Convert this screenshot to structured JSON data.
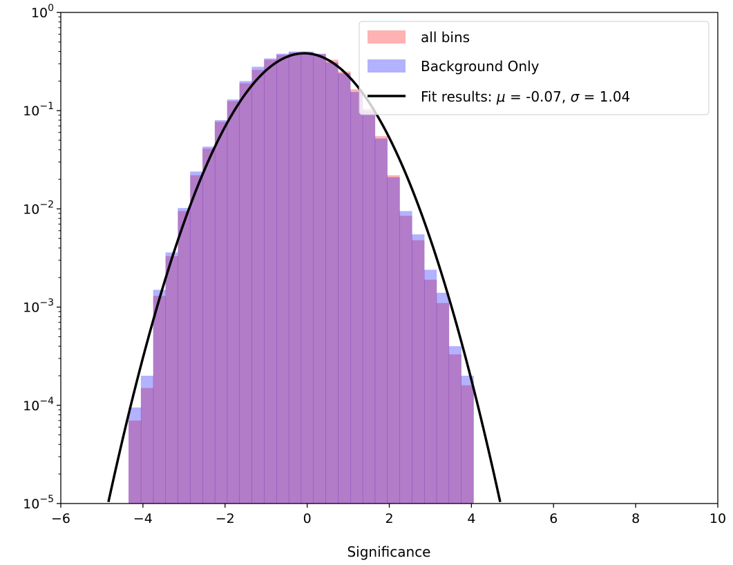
{
  "chart_data": {
    "type": "bar",
    "title": "",
    "xlabel": "Significance",
    "ylabel": "",
    "xlim": [
      -6,
      10
    ],
    "ylim": [
      1e-05,
      1
    ],
    "yscale": "log",
    "grid": false,
    "legend_position": "top-right",
    "x_ticks": [
      {
        "value": -6,
        "label": "−6"
      },
      {
        "value": -4,
        "label": "−4"
      },
      {
        "value": -2,
        "label": "−2"
      },
      {
        "value": 0,
        "label": "0"
      },
      {
        "value": 2,
        "label": "2"
      },
      {
        "value": 4,
        "label": "4"
      },
      {
        "value": 6,
        "label": "6"
      },
      {
        "value": 8,
        "label": "8"
      },
      {
        "value": 10,
        "label": "10"
      }
    ],
    "y_ticks": [
      {
        "value": 1e-05,
        "base": "10",
        "exp": "−5"
      },
      {
        "value": 0.0001,
        "base": "10",
        "exp": "−4"
      },
      {
        "value": 0.001,
        "base": "10",
        "exp": "−3"
      },
      {
        "value": 0.01,
        "base": "10",
        "exp": "−2"
      },
      {
        "value": 0.1,
        "base": "10",
        "exp": "−1"
      },
      {
        "value": 1,
        "base": "10",
        "exp": "0"
      }
    ],
    "bin_edges": [
      -4.35,
      -4.05,
      -3.75,
      -3.45,
      -3.15,
      -2.85,
      -2.55,
      -2.25,
      -1.95,
      -1.65,
      -1.35,
      -1.05,
      -0.75,
      -0.45,
      -0.15,
      0.15,
      0.45,
      0.75,
      1.05,
      1.35,
      1.65,
      1.95,
      2.25,
      2.55,
      2.85,
      3.15,
      3.45,
      3.75,
      4.05,
      4.35
    ],
    "series": [
      {
        "name": "all bins",
        "color": "#ff0000",
        "opacity": 0.3,
        "values": [
          7e-05,
          0.00015,
          0.0013,
          0.0033,
          0.0095,
          0.022,
          0.041,
          0.077,
          0.125,
          0.19,
          0.26,
          0.33,
          0.37,
          0.39,
          0.39,
          0.375,
          0.33,
          0.25,
          0.165,
          0.105,
          0.055,
          0.022,
          0.0085,
          0.0048,
          0.0019,
          0.0011,
          0.00033,
          0.00016,
          1e-05
        ]
      },
      {
        "name": "Background Only",
        "color": "#0000ff",
        "opacity": 0.3,
        "values": [
          9.5e-05,
          0.0002,
          0.0015,
          0.0036,
          0.0102,
          0.024,
          0.043,
          0.08,
          0.13,
          0.2,
          0.28,
          0.34,
          0.38,
          0.4,
          0.4,
          0.38,
          0.31,
          0.24,
          0.155,
          0.1,
          0.052,
          0.021,
          0.0095,
          0.0055,
          0.0024,
          0.0014,
          0.0004,
          0.0002,
          1e-05
        ]
      }
    ],
    "fit": {
      "name": "Fit results: μ = -0.07, σ = 1.04",
      "label_prefix": "Fit results: ",
      "label_mu": "μ",
      "label_mid": " = -0.07, ",
      "label_sigma": "σ",
      "label_end": " = 1.04",
      "mu": -0.07,
      "sigma": 1.04,
      "color": "#000000"
    }
  }
}
